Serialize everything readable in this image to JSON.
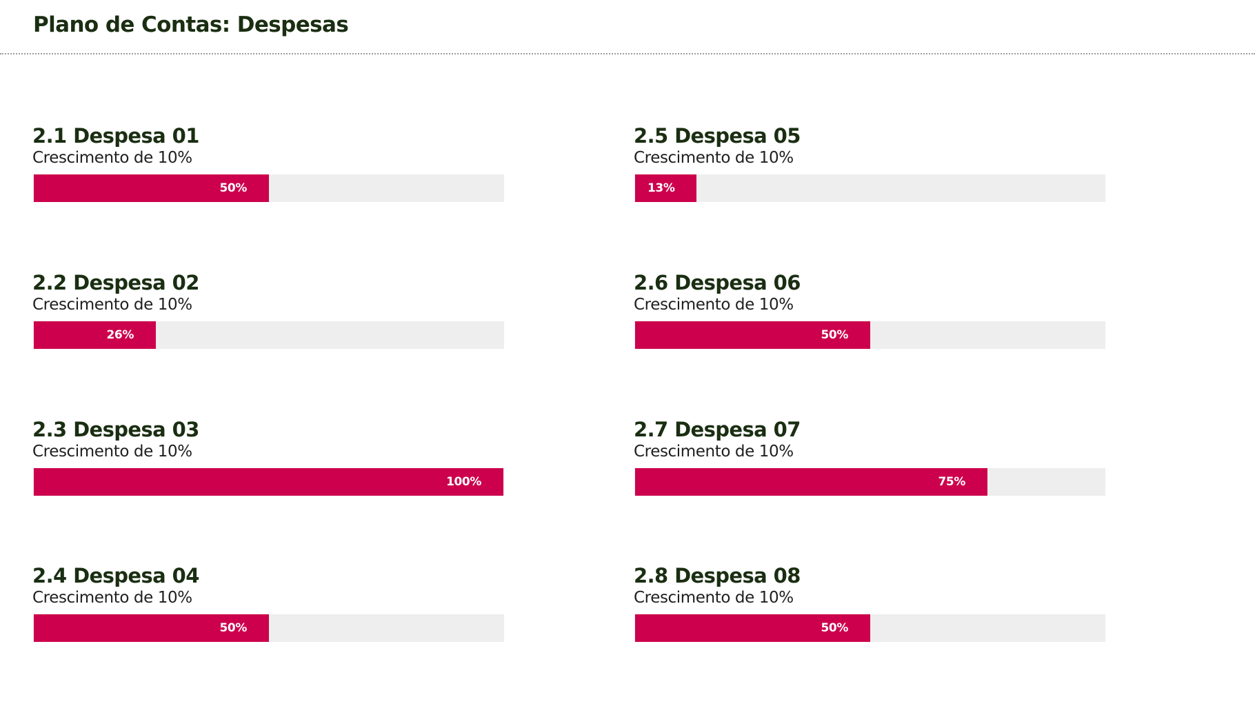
{
  "header": {
    "title": "Plano de Contas: Despesas"
  },
  "colors": {
    "bar_fill": "#cc004c",
    "bar_track": "#eeeeee",
    "heading": "#1a2e12"
  },
  "metrics": [
    {
      "title": "2.1 Despesa 01",
      "subtitle": "Crescimento de 10%",
      "percent": 50,
      "label": "50%"
    },
    {
      "title": "2.2 Despesa 02",
      "subtitle": "Crescimento de 10%",
      "percent": 26,
      "label": "26%"
    },
    {
      "title": "2.3 Despesa 03",
      "subtitle": "Crescimento de 10%",
      "percent": 100,
      "label": "100%"
    },
    {
      "title": "2.4 Despesa 04",
      "subtitle": "Crescimento de 10%",
      "percent": 50,
      "label": "50%"
    },
    {
      "title": "2.5 Despesa 05",
      "subtitle": "Crescimento de 10%",
      "percent": 13,
      "label": "13%"
    },
    {
      "title": "2.6 Despesa 06",
      "subtitle": "Crescimento de 10%",
      "percent": 50,
      "label": "50%"
    },
    {
      "title": "2.7 Despesa 07",
      "subtitle": "Crescimento de 10%",
      "percent": 75,
      "label": "75%"
    },
    {
      "title": "2.8 Despesa 08",
      "subtitle": "Crescimento de 10%",
      "percent": 50,
      "label": "50%"
    }
  ]
}
